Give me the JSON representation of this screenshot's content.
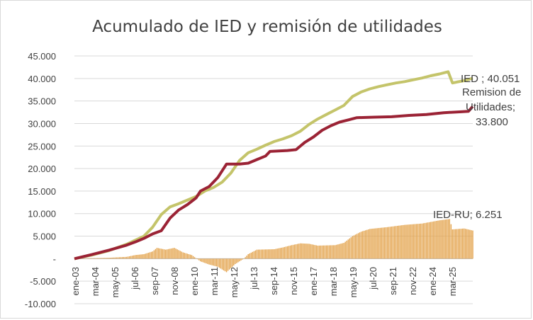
{
  "chart_data": {
    "type": "line",
    "title": "Acumulado de IED y remisión de utilidades",
    "xlabel": "",
    "ylabel": "",
    "ylim": [
      -10000,
      45000
    ],
    "y_ticks": [
      -10000,
      -5000,
      0,
      5000,
      10000,
      15000,
      20000,
      25000,
      30000,
      35000,
      40000,
      45000
    ],
    "y_tick_labels": [
      "-10.000",
      "-5.000",
      "-",
      "5.000",
      "10.000",
      "15.000",
      "20.000",
      "25.000",
      "30.000",
      "35.000",
      "40.000",
      "45.000"
    ],
    "x_tick_labels": [
      "ene-03",
      "mar-04",
      "may-05",
      "jul-06",
      "sep-07",
      "nov-08",
      "ene-10",
      "mar-11",
      "may-12",
      "jul-13",
      "sep-14",
      "nov-15",
      "ene-17",
      "mar-18",
      "may-19",
      "jul-20",
      "sep-21",
      "nov-22",
      "ene-24",
      "mar-25"
    ],
    "x_range": [
      "2003-01",
      "2025-12"
    ],
    "grid": true,
    "legend": "none",
    "series": [
      {
        "key": "ied",
        "type": "line",
        "color": "#c4c46a",
        "points": [
          [
            "2003-01",
            0
          ],
          [
            "2004-01",
            800
          ],
          [
            "2005-01",
            1800
          ],
          [
            "2006-01",
            3200
          ],
          [
            "2007-01",
            5000
          ],
          [
            "2007-07",
            7000
          ],
          [
            "2008-01",
            9800
          ],
          [
            "2008-07",
            11500
          ],
          [
            "2009-01",
            12200
          ],
          [
            "2009-07",
            13000
          ],
          [
            "2010-01",
            13800
          ],
          [
            "2010-07",
            15000
          ],
          [
            "2011-01",
            15800
          ],
          [
            "2011-07",
            17000
          ],
          [
            "2012-01",
            19000
          ],
          [
            "2012-07",
            21800
          ],
          [
            "2013-01",
            23500
          ],
          [
            "2013-07",
            24300
          ],
          [
            "2014-01",
            25200
          ],
          [
            "2014-07",
            26000
          ],
          [
            "2015-01",
            26600
          ],
          [
            "2015-07",
            27300
          ],
          [
            "2016-01",
            28300
          ],
          [
            "2016-07",
            29800
          ],
          [
            "2017-01",
            31000
          ],
          [
            "2017-07",
            32000
          ],
          [
            "2018-01",
            33000
          ],
          [
            "2018-07",
            34000
          ],
          [
            "2019-01",
            36000
          ],
          [
            "2019-07",
            37000
          ],
          [
            "2020-01",
            37700
          ],
          [
            "2020-07",
            38200
          ],
          [
            "2021-01",
            38600
          ],
          [
            "2021-07",
            39000
          ],
          [
            "2022-01",
            39300
          ],
          [
            "2022-07",
            39700
          ],
          [
            "2023-01",
            40100
          ],
          [
            "2023-07",
            40600
          ],
          [
            "2024-01",
            41000
          ],
          [
            "2024-07",
            41500
          ],
          [
            "2024-10",
            39000
          ],
          [
            "2025-01",
            39200
          ],
          [
            "2025-06",
            39500
          ],
          [
            "2025-12",
            40051
          ]
        ]
      },
      {
        "key": "remision",
        "type": "line",
        "color": "#9b2335",
        "points": [
          [
            "2003-01",
            0
          ],
          [
            "2004-01",
            900
          ],
          [
            "2005-01",
            1900
          ],
          [
            "2006-01",
            3000
          ],
          [
            "2006-07",
            3700
          ],
          [
            "2007-01",
            4500
          ],
          [
            "2007-07",
            5500
          ],
          [
            "2008-01",
            6200
          ],
          [
            "2008-07",
            9000
          ],
          [
            "2009-01",
            10800
          ],
          [
            "2009-07",
            12000
          ],
          [
            "2010-01",
            13500
          ],
          [
            "2010-04",
            15000
          ],
          [
            "2010-10",
            16000
          ],
          [
            "2011-04",
            18000
          ],
          [
            "2011-10",
            21000
          ],
          [
            "2012-07",
            21000
          ],
          [
            "2013-01",
            21200
          ],
          [
            "2013-07",
            22000
          ],
          [
            "2014-01",
            22800
          ],
          [
            "2014-04",
            23800
          ],
          [
            "2015-04",
            24000
          ],
          [
            "2015-10",
            24200
          ],
          [
            "2016-04",
            25800
          ],
          [
            "2016-10",
            27000
          ],
          [
            "2017-04",
            28500
          ],
          [
            "2017-10",
            29500
          ],
          [
            "2018-04",
            30300
          ],
          [
            "2018-10",
            30800
          ],
          [
            "2019-04",
            31300
          ],
          [
            "2020-04",
            31400
          ],
          [
            "2021-04",
            31500
          ],
          [
            "2022-04",
            31800
          ],
          [
            "2023-04",
            32000
          ],
          [
            "2024-04",
            32400
          ],
          [
            "2025-04",
            32600
          ],
          [
            "2025-09",
            32700
          ],
          [
            "2025-12",
            33800
          ]
        ]
      },
      {
        "key": "ied_ru",
        "type": "bar",
        "color": "#e3a24a",
        "points": [
          [
            "2003-01",
            0
          ],
          [
            "2004-01",
            100
          ],
          [
            "2005-01",
            200
          ],
          [
            "2006-01",
            400
          ],
          [
            "2006-07",
            800
          ],
          [
            "2007-01",
            1000
          ],
          [
            "2007-07",
            1600
          ],
          [
            "2007-10",
            2400
          ],
          [
            "2008-04",
            2000
          ],
          [
            "2008-10",
            2400
          ],
          [
            "2009-04",
            1400
          ],
          [
            "2009-10",
            800
          ],
          [
            "2010-04",
            -600
          ],
          [
            "2010-10",
            -1300
          ],
          [
            "2011-04",
            -1800
          ],
          [
            "2011-10",
            -3000
          ],
          [
            "2012-04",
            -1200
          ],
          [
            "2012-10",
            0
          ],
          [
            "2013-01",
            1000
          ],
          [
            "2013-07",
            2000
          ],
          [
            "2014-07",
            2100
          ],
          [
            "2015-01",
            2500
          ],
          [
            "2015-07",
            3000
          ],
          [
            "2016-01",
            3400
          ],
          [
            "2016-07",
            3300
          ],
          [
            "2017-01",
            2900
          ],
          [
            "2018-01",
            3000
          ],
          [
            "2018-07",
            3500
          ],
          [
            "2019-01",
            5000
          ],
          [
            "2019-07",
            6000
          ],
          [
            "2020-01",
            6600
          ],
          [
            "2021-01",
            7000
          ],
          [
            "2022-01",
            7500
          ],
          [
            "2023-01",
            7800
          ],
          [
            "2024-01",
            8500
          ],
          [
            "2024-08",
            8800
          ],
          [
            "2024-10",
            6500
          ],
          [
            "2025-06",
            6700
          ],
          [
            "2025-12",
            6251
          ]
        ]
      }
    ],
    "annotations": {
      "ied": "IED ; 40.051",
      "remision_line1": "Remision de",
      "remision_line2": "Utilidades;",
      "remision_line3": "33.800",
      "ied_ru": "IED-RU; 6.251"
    }
  }
}
